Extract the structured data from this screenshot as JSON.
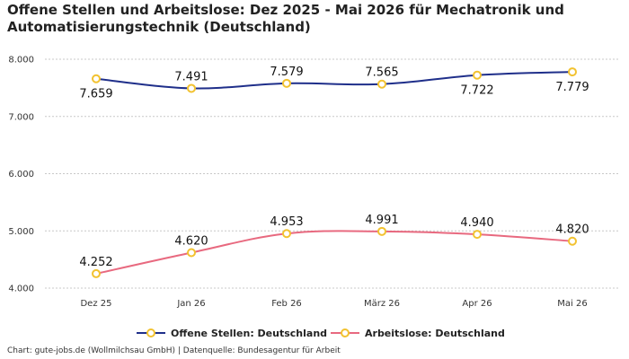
{
  "chart_data": {
    "type": "line",
    "title": "Offene Stellen und Arbeitslose: Dez 2025 - Mai 2026 für Mechatronik und Automatisierungstechnik (Deutschland)",
    "categories": [
      "Dez 25",
      "Jan 26",
      "Feb 26",
      "März 26",
      "Apr 26",
      "Mai 26"
    ],
    "ylim": [
      4000,
      8000
    ],
    "yticks": [
      4000,
      5000,
      6000,
      7000,
      8000
    ],
    "ytick_labels": [
      "4.000",
      "5.000",
      "6.000",
      "7.000",
      "8.000"
    ],
    "grid": true,
    "legend_position": "bottom",
    "series": [
      {
        "name": "Offene Stellen: Deutschland",
        "color": "#1f2f8a",
        "values": [
          7659,
          7491,
          7579,
          7565,
          7722,
          7779
        ],
        "labels": [
          "7.659",
          "7.491",
          "7.579",
          "7.565",
          "7.722",
          "7.779"
        ],
        "label_side": [
          "below",
          "above",
          "above",
          "above",
          "below",
          "below"
        ]
      },
      {
        "name": "Arbeitslose: Deutschland",
        "color": "#e8697f",
        "values": [
          4252,
          4620,
          4953,
          4991,
          4940,
          4820
        ],
        "labels": [
          "4.252",
          "4.620",
          "4.953",
          "4.991",
          "4.940",
          "4.820"
        ],
        "label_side": [
          "above",
          "above",
          "above",
          "above",
          "above",
          "above"
        ]
      }
    ],
    "marker_color": "#f2c230"
  },
  "source": "Chart: gute-jobs.de (Wollmilchsau GmbH) | Datenquelle: Bundesagentur für Arbeit"
}
